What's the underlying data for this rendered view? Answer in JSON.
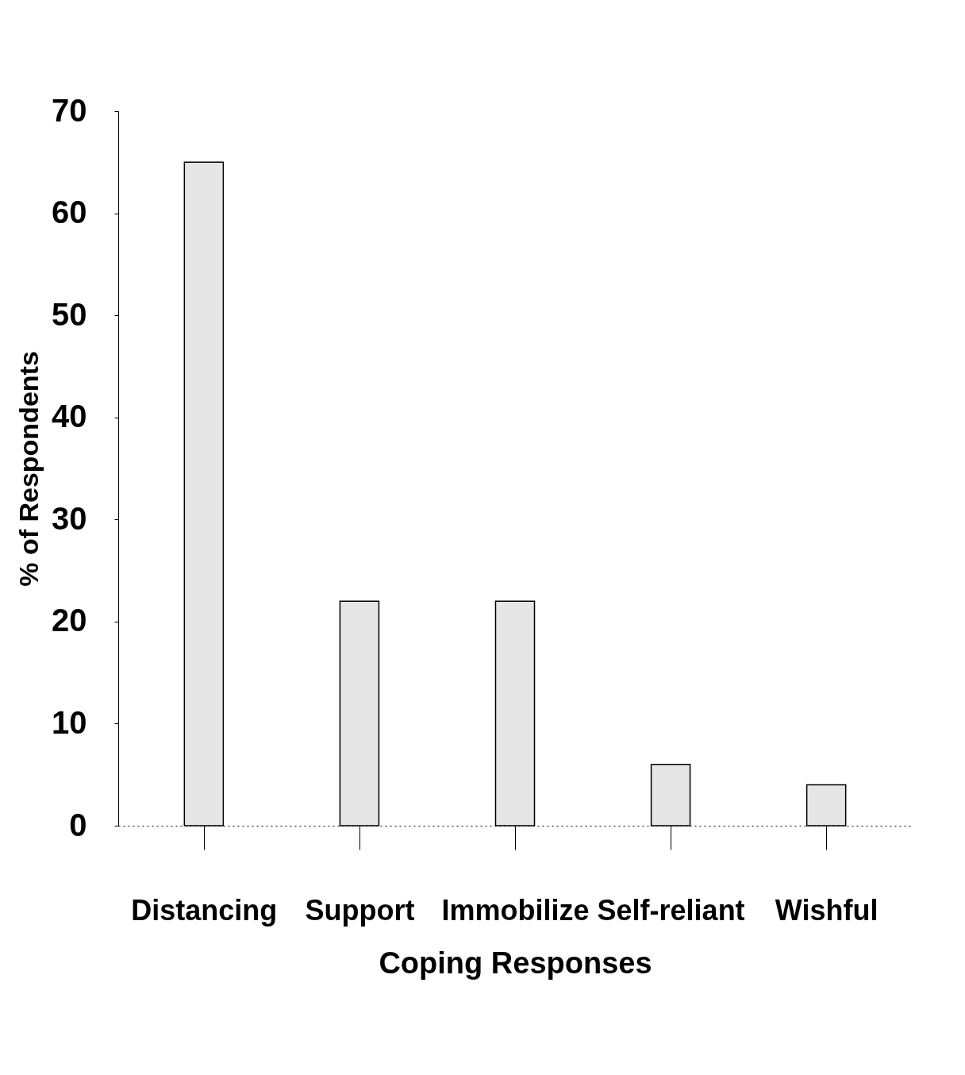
{
  "chart_data": {
    "type": "bar",
    "xlabel": "Coping Responses",
    "ylabel": "% of Respondents",
    "categories": [
      "Distancing",
      "Support",
      "Immobilize",
      "Self-reliant",
      "Wishful"
    ],
    "values": [
      65,
      22,
      22,
      6,
      4
    ],
    "color": "#e6e6e6",
    "ylim": [
      0,
      70
    ],
    "yticks": [
      0,
      10,
      20,
      30,
      40,
      50,
      60,
      70
    ],
    "grid": false
  }
}
